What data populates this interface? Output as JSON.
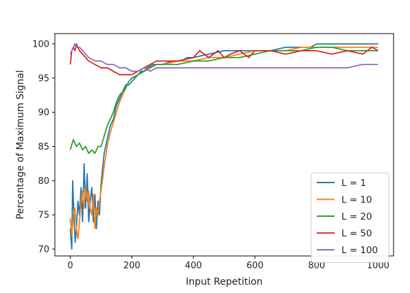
{
  "chart_data": {
    "type": "line",
    "xlabel": "Input Repetition",
    "ylabel": "Percentage of Maximum Signal",
    "xlim": [
      -50,
      1050
    ],
    "ylim": [
      69,
      101.5
    ],
    "xticks": [
      0,
      200,
      400,
      600,
      800,
      1000
    ],
    "yticks": [
      70,
      75,
      80,
      85,
      90,
      95,
      100
    ],
    "grid": false,
    "legend_position": "lower-right",
    "series": [
      {
        "name": "L = 1",
        "color": "#1f77b4",
        "x": [
          0,
          5,
          8,
          12,
          16,
          20,
          25,
          30,
          35,
          40,
          45,
          50,
          55,
          60,
          65,
          70,
          75,
          80,
          85,
          90,
          95,
          100,
          110,
          120,
          130,
          140,
          150,
          160,
          170,
          180,
          190,
          200,
          210,
          220,
          230,
          240,
          250,
          270,
          300,
          330,
          360,
          380,
          400,
          450,
          500,
          520,
          540,
          560,
          580,
          600,
          650,
          700,
          750,
          780,
          800,
          820,
          850,
          900,
          950,
          1000
        ],
        "y": [
          73,
          70,
          80,
          75,
          71,
          73,
          77,
          75,
          79,
          74,
          82.5,
          76,
          81,
          74,
          77,
          79,
          74,
          78,
          73,
          77,
          75,
          79.5,
          84,
          86,
          88,
          89,
          91,
          92,
          93,
          94,
          94,
          94.5,
          95,
          95.5,
          96,
          96,
          96.5,
          97,
          97,
          97.5,
          97.5,
          98,
          98,
          98.5,
          99,
          99,
          99,
          99,
          99,
          99,
          99,
          99.5,
          99.5,
          99.5,
          100,
          100,
          100,
          100,
          100,
          100
        ]
      },
      {
        "name": "L = 10",
        "color": "#ff7f0e",
        "x": [
          0,
          5,
          10,
          15,
          20,
          25,
          30,
          35,
          40,
          45,
          50,
          55,
          60,
          65,
          70,
          75,
          80,
          85,
          90,
          95,
          100,
          110,
          120,
          130,
          140,
          150,
          160,
          170,
          180,
          190,
          200,
          220,
          240,
          260,
          280,
          300,
          350,
          400,
          450,
          500,
          550,
          600,
          650,
          700,
          750,
          800,
          850,
          900,
          950,
          1000
        ],
        "y": [
          74.5,
          72,
          75,
          76,
          73,
          71.5,
          74,
          77,
          78.5,
          76,
          79,
          77,
          78.5,
          76,
          75,
          78,
          73,
          76,
          75,
          77,
          78.5,
          82,
          85,
          87,
          88.5,
          90,
          91.5,
          92.5,
          93.5,
          94.5,
          95,
          95.5,
          96,
          96.5,
          97,
          97,
          97.5,
          97.5,
          98,
          98,
          98.5,
          99,
          99,
          99,
          99.5,
          99.5,
          99.5,
          99.5,
          99.5,
          99.5
        ]
      },
      {
        "name": "L = 20",
        "color": "#2ca02c",
        "x": [
          0,
          10,
          20,
          30,
          40,
          50,
          60,
          70,
          80,
          90,
          100,
          110,
          120,
          130,
          140,
          150,
          160,
          170,
          180,
          190,
          200,
          220,
          240,
          260,
          280,
          300,
          350,
          400,
          450,
          500,
          550,
          600,
          650,
          700,
          750,
          800,
          850,
          900,
          950,
          1000
        ],
        "y": [
          84.5,
          86,
          85,
          85.5,
          84.5,
          85,
          84,
          84.5,
          84,
          85,
          85,
          86.5,
          88,
          89,
          90,
          91.5,
          92.5,
          93,
          93.5,
          94.5,
          95,
          95.5,
          96,
          96.5,
          97,
          97,
          97,
          97.5,
          97.5,
          98,
          98,
          98.5,
          99,
          99,
          99,
          99.5,
          99.5,
          99,
          99,
          99
        ]
      },
      {
        "name": "L = 50",
        "color": "#d62728",
        "x": [
          0,
          5,
          10,
          15,
          20,
          30,
          40,
          50,
          60,
          80,
          100,
          120,
          140,
          160,
          180,
          200,
          220,
          240,
          260,
          280,
          300,
          350,
          400,
          420,
          450,
          480,
          500,
          520,
          550,
          580,
          600,
          650,
          700,
          750,
          800,
          850,
          900,
          950,
          980,
          1000
        ],
        "y": [
          97,
          99,
          99.5,
          99,
          100,
          99,
          98.5,
          98,
          97.5,
          97,
          96.5,
          96.5,
          96,
          95.5,
          95.5,
          95.5,
          96,
          96.5,
          97,
          97.5,
          97.5,
          97.5,
          98,
          99,
          98,
          99,
          98,
          98.5,
          99,
          98,
          99,
          99,
          98.5,
          99,
          99,
          98.5,
          99,
          98.5,
          99.5,
          99
        ]
      },
      {
        "name": "L = 100",
        "color": "#9467bd",
        "x": [
          0,
          5,
          10,
          15,
          20,
          30,
          40,
          50,
          60,
          80,
          100,
          120,
          140,
          160,
          180,
          200,
          220,
          240,
          260,
          280,
          300,
          350,
          400,
          450,
          500,
          550,
          600,
          650,
          700,
          750,
          800,
          850,
          900,
          950,
          1000
        ],
        "y": [
          98.5,
          99,
          99.5,
          100,
          99.5,
          99.5,
          99,
          98.5,
          98,
          97.5,
          97.5,
          97,
          97,
          96.5,
          96.5,
          96,
          96,
          96.5,
          96,
          96.5,
          96.5,
          96.5,
          96.5,
          96.5,
          96.5,
          96.5,
          96.5,
          96.5,
          96.5,
          96.5,
          96.5,
          96.5,
          96.5,
          97,
          97
        ]
      }
    ]
  }
}
